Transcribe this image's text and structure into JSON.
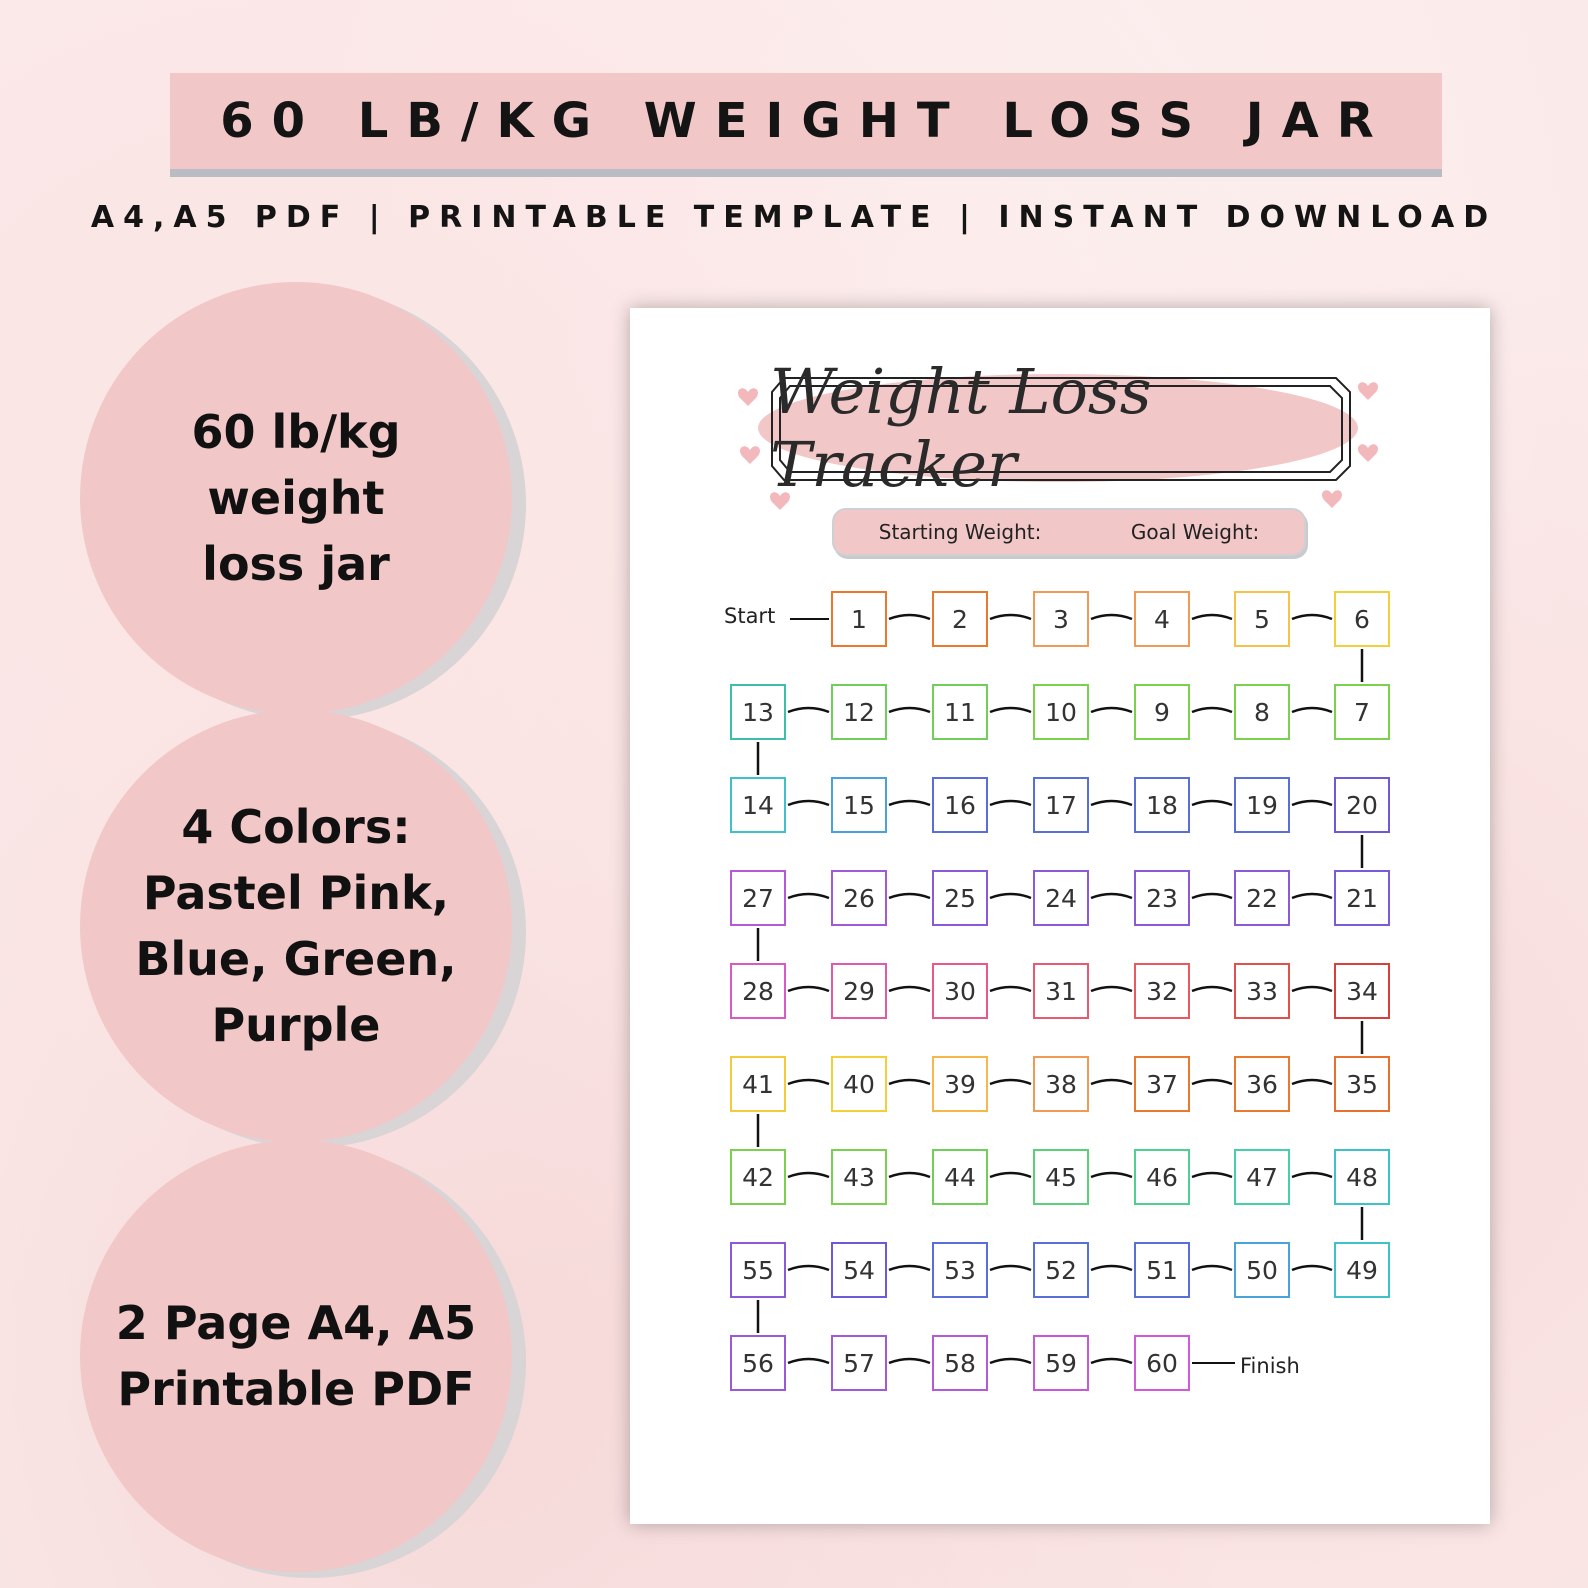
{
  "header": {
    "title": "60 LB/KG WEIGHT LOSS JAR",
    "subtitle": "A4,A5 PDF | PRINTABLE TEMPLATE | INSTANT DOWNLOAD"
  },
  "circles": [
    {
      "text": "60 lb/kg weight\nloss jar"
    },
    {
      "text": "4 Colors:\nPastel Pink,\nBlue, Green,\nPurple"
    },
    {
      "text": "2 Page A4, A5\nPrintable PDF"
    }
  ],
  "tracker": {
    "title": "Weight Loss Tracker",
    "starting_weight_label": "Starting Weight:",
    "goal_weight_label": "Goal Weight:",
    "start_label": "Start",
    "finish_label": "Finish",
    "rows": [
      {
        "numbers": [
          "1",
          "2",
          "3",
          "4",
          "5",
          "6"
        ],
        "colors": [
          "#e8792e",
          "#e8792e",
          "#f09a55",
          "#f09a55",
          "#f5c24a",
          "#f2d03a"
        ]
      },
      {
        "numbers": [
          "13",
          "12",
          "11",
          "10",
          "9",
          "8",
          "7"
        ],
        "colors": [
          "#3cbfa8",
          "#6fcf5a",
          "#6fcf5a",
          "#7ad04f",
          "#7ad04f",
          "#7ad04f",
          "#7ad04f"
        ]
      },
      {
        "numbers": [
          "14",
          "15",
          "16",
          "17",
          "18",
          "19",
          "20"
        ],
        "colors": [
          "#3ec1c9",
          "#4aa3d8",
          "#5a6ed8",
          "#5a6ed8",
          "#5a6ed8",
          "#5a6ed8",
          "#6e5ad8"
        ]
      },
      {
        "numbers": [
          "27",
          "26",
          "25",
          "24",
          "23",
          "22",
          "21"
        ],
        "colors": [
          "#b45ad8",
          "#a05ad8",
          "#8a5ad8",
          "#8a5ad8",
          "#8a5ad8",
          "#8a5ad8",
          "#7a5ad8"
        ]
      },
      {
        "numbers": [
          "28",
          "29",
          "30",
          "31",
          "32",
          "33",
          "34"
        ],
        "colors": [
          "#d85ac4",
          "#e05aa8",
          "#e65a8a",
          "#e85a72",
          "#e85a60",
          "#e0504c",
          "#d8403c"
        ]
      },
      {
        "numbers": [
          "41",
          "40",
          "39",
          "38",
          "37",
          "36",
          "35"
        ],
        "colors": [
          "#f2cc3a",
          "#f2d03a",
          "#f5b84a",
          "#f09a55",
          "#e8792e",
          "#e8792e",
          "#e8702e"
        ]
      },
      {
        "numbers": [
          "42",
          "43",
          "44",
          "45",
          "46",
          "47",
          "48"
        ],
        "colors": [
          "#7ad04f",
          "#7ad04f",
          "#6fcf5a",
          "#5ccf7a",
          "#4fcf92",
          "#45cfaa",
          "#3ec1c9"
        ]
      },
      {
        "numbers": [
          "55",
          "54",
          "53",
          "52",
          "51",
          "50",
          "49"
        ],
        "colors": [
          "#8a5ad8",
          "#6e5ad8",
          "#5a6ed8",
          "#5a6ed8",
          "#5a6ed8",
          "#4aa3d8",
          "#3ec1c9"
        ]
      },
      {
        "numbers": [
          "56",
          "57",
          "58",
          "59",
          "60"
        ],
        "colors": [
          "#9a5ad8",
          "#a05ad8",
          "#b45ad8",
          "#c45ad8",
          "#d05ad8"
        ]
      }
    ]
  }
}
